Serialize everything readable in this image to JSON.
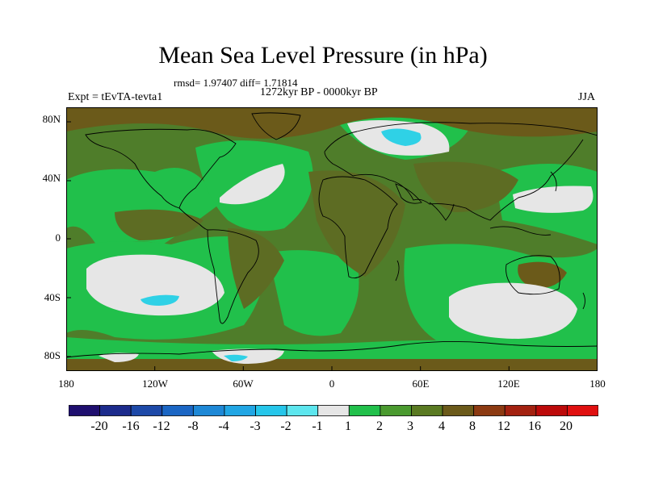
{
  "title": "Mean Sea Level Pressure (in hPa)",
  "stats_text": "rmsd= 1.97407 diff= 1.71814",
  "period_text": "1272kyr BP - 0000kyr BP",
  "expt_text": "Expt = tEvTA-tevta1",
  "season_text": "JJA",
  "lat_labels": [
    "80N",
    "40N",
    "0",
    "40S",
    "80S"
  ],
  "lon_labels": [
    "180",
    "120W",
    "60W",
    "0",
    "60E",
    "120E",
    "180"
  ],
  "colorbar": {
    "labels": [
      "-20",
      "-16",
      "-12",
      "-8",
      "-4",
      "-3",
      "-2",
      "-1",
      "1",
      "2",
      "3",
      "4",
      "8",
      "12",
      "16",
      "20"
    ],
    "colors": [
      "#1f0f6f",
      "#1c2b8c",
      "#1d49a8",
      "#1b66c4",
      "#1e88d6",
      "#21a6e4",
      "#26c6ea",
      "#5de6ee",
      "#e6e6e6",
      "#21c04b",
      "#4a9a2f",
      "#5a7a22",
      "#6b5a1a",
      "#8c3a12",
      "#a32110",
      "#bc0a0a",
      "#e01010"
    ]
  },
  "map_colors": {
    "base": "#4f7d2a",
    "green": "#21c04b",
    "olive": "#5d6c23",
    "brown": "#6b5a1a",
    "white": "#e6e6e6",
    "cyan": "#2fd1e6"
  }
}
